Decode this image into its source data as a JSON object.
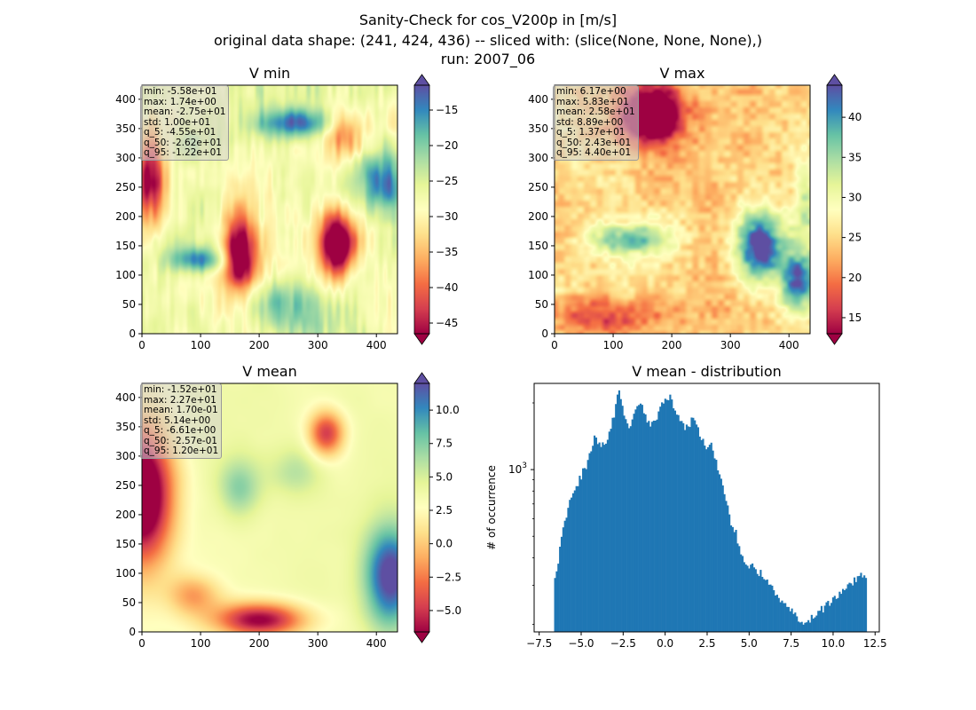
{
  "figure": {
    "title_lines": [
      "Sanity-Check for cos_V200p in [m/s]",
      "original data shape: (241, 424, 436) -- sliced with: (slice(None, None, None),)",
      "run: 2007_06"
    ]
  },
  "chart_data": [
    {
      "type": "heatmap",
      "title": "V min",
      "colormap": "Spectral",
      "xlim": [
        0,
        436
      ],
      "ylim": [
        0,
        424
      ],
      "x_ticks": [
        0,
        100,
        200,
        300,
        400
      ],
      "y_ticks": [
        0,
        50,
        100,
        150,
        200,
        250,
        300,
        350,
        400
      ],
      "colorbar": {
        "range": [
          -46.5,
          -11.5
        ],
        "ticks": [
          -45,
          -40,
          -35,
          -30,
          -25,
          -20,
          -15
        ],
        "extend": "both"
      },
      "stats": [
        "min: -5.58e+01",
        "max: 1.74e+00",
        "mean: -2.75e+01",
        "std: 1.00e+01",
        "q_5: -4.55e+01",
        "q_50: -2.62e+01",
        "q_95: -1.22e+01"
      ]
    },
    {
      "type": "heatmap",
      "title": "V max",
      "colormap": "Spectral",
      "xlim": [
        0,
        436
      ],
      "ylim": [
        0,
        424
      ],
      "x_ticks": [
        0,
        100,
        200,
        300,
        400
      ],
      "y_ticks": [
        0,
        50,
        100,
        150,
        200,
        250,
        300,
        350,
        400
      ],
      "colorbar": {
        "range": [
          13,
          44
        ],
        "ticks": [
          15,
          20,
          25,
          30,
          35,
          40
        ],
        "extend": "both"
      },
      "stats": [
        "min: 6.17e+00",
        "max: 5.83e+01",
        "mean: 2.58e+01",
        "std: 8.89e+00",
        "q_5: 1.37e+01",
        "q_50: 2.43e+01",
        "q_95: 4.40e+01"
      ]
    },
    {
      "type": "heatmap",
      "title": "V mean",
      "colormap": "Spectral",
      "xlim": [
        0,
        436
      ],
      "ylim": [
        0,
        424
      ],
      "x_ticks": [
        0,
        100,
        200,
        300,
        400
      ],
      "y_ticks": [
        0,
        50,
        100,
        150,
        200,
        250,
        300,
        350,
        400
      ],
      "colorbar": {
        "range": [
          -6.6,
          12.0
        ],
        "ticks": [
          -5.0,
          -2.5,
          0.0,
          2.5,
          5.0,
          7.5,
          10.0
        ],
        "extend": "both"
      },
      "stats": [
        "min: -1.52e+01",
        "max: 2.27e+01",
        "mean: 1.70e-01",
        "std: 5.14e+00",
        "q_5: -6.61e+00",
        "q_50: -2.57e-01",
        "q_95: 1.20e+01"
      ]
    },
    {
      "type": "bar",
      "title": "V mean - distribution",
      "ylabel": "# of occurrence",
      "y_scale": "log",
      "xlim": [
        -7.8,
        12.75
      ],
      "ylim": [
        185,
        2450
      ],
      "x_ticks": [
        -7.5,
        -5.0,
        -2.5,
        0.0,
        2.5,
        5.0,
        7.5,
        10.0,
        12.5
      ],
      "y_ticks": [
        1000
      ],
      "y_tick_labels": [
        "10^3"
      ],
      "bar_color": "#1f77b4",
      "bins": {
        "start": -6.61,
        "end": 12.0,
        "count": 190
      },
      "profile_points": [
        [
          -6.61,
          330
        ],
        [
          -6.45,
          360
        ],
        [
          -6.3,
          420
        ],
        [
          -6.1,
          560
        ],
        [
          -5.9,
          620
        ],
        [
          -5.7,
          720
        ],
        [
          -5.5,
          780
        ],
        [
          -5.3,
          840
        ],
        [
          -5.0,
          930
        ],
        [
          -4.7,
          1050
        ],
        [
          -4.5,
          1150
        ],
        [
          -4.3,
          1300
        ],
        [
          -4.15,
          1450
        ],
        [
          -4.0,
          1350
        ],
        [
          -3.8,
          1250
        ],
        [
          -3.5,
          1350
        ],
        [
          -3.2,
          1550
        ],
        [
          -3.0,
          1850
        ],
        [
          -2.8,
          2150
        ],
        [
          -2.7,
          2250
        ],
        [
          -2.55,
          1950
        ],
        [
          -2.4,
          1650
        ],
        [
          -2.2,
          1550
        ],
        [
          -2.0,
          1600
        ],
        [
          -1.7,
          1950
        ],
        [
          -1.5,
          2050
        ],
        [
          -1.3,
          1850
        ],
        [
          -1.1,
          1650
        ],
        [
          -0.9,
          1550
        ],
        [
          -0.7,
          1650
        ],
        [
          -0.4,
          1800
        ],
        [
          -0.2,
          1950
        ],
        [
          0.0,
          2050
        ],
        [
          0.1,
          2150
        ],
        [
          0.3,
          2100
        ],
        [
          0.5,
          1900
        ],
        [
          0.8,
          1700
        ],
        [
          1.1,
          1550
        ],
        [
          1.4,
          1600
        ],
        [
          1.7,
          1700
        ],
        [
          1.9,
          1550
        ],
        [
          2.2,
          1350
        ],
        [
          2.5,
          1200
        ],
        [
          2.7,
          1300
        ],
        [
          2.9,
          1200
        ],
        [
          3.1,
          1050
        ],
        [
          3.3,
          900
        ],
        [
          3.5,
          800
        ],
        [
          3.7,
          680
        ],
        [
          3.85,
          600
        ],
        [
          4.0,
          560
        ],
        [
          4.2,
          520
        ],
        [
          4.4,
          440
        ],
        [
          4.7,
          390
        ],
        [
          5.0,
          370
        ],
        [
          5.3,
          360
        ],
        [
          5.6,
          345
        ],
        [
          6.0,
          320
        ],
        [
          6.4,
          290
        ],
        [
          6.8,
          262
        ],
        [
          7.2,
          240
        ],
        [
          7.6,
          224
        ],
        [
          8.0,
          212
        ],
        [
          8.3,
          206
        ],
        [
          8.6,
          210
        ],
        [
          9.0,
          222
        ],
        [
          9.4,
          236
        ],
        [
          9.8,
          252
        ],
        [
          10.3,
          270
        ],
        [
          10.8,
          292
        ],
        [
          11.2,
          310
        ],
        [
          11.6,
          328
        ],
        [
          12.0,
          335
        ]
      ]
    }
  ]
}
